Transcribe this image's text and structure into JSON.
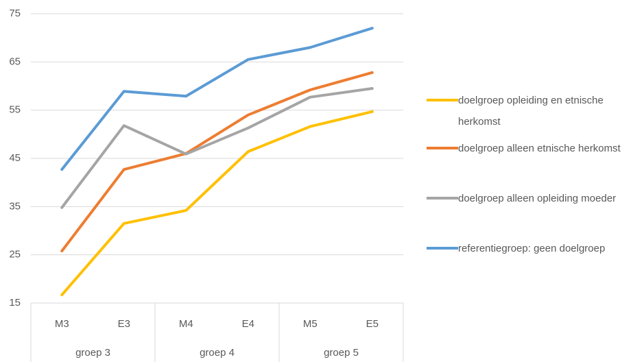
{
  "chart_data": {
    "type": "line",
    "categories": [
      "M3",
      "E3",
      "M4",
      "E4",
      "M5",
      "E5"
    ],
    "groups": [
      "groep 3",
      "groep 4",
      "groep 5"
    ],
    "series": [
      {
        "name": "doelgroep opleiding en etnische herkomst",
        "color": "#ffc000",
        "values": [
          16.7,
          31.5,
          34.2,
          46.4,
          51.6,
          54.7
        ]
      },
      {
        "name": "doelgroep alleen etnische herkomst",
        "color": "#ed7d31",
        "values": [
          25.8,
          42.7,
          46,
          54,
          59.2,
          62.8
        ]
      },
      {
        "name": "doelgroep alleen opleiding moeder",
        "color": "#a5a5a5",
        "values": [
          34.8,
          51.8,
          45.9,
          51.3,
          57.7,
          59.5
        ]
      },
      {
        "name": "referentiegroep: geen doelgroep",
        "color": "#5b9bd5",
        "values": [
          42.7,
          58.9,
          57.9,
          65.5,
          68,
          72
        ]
      }
    ],
    "ylim": [
      15,
      75
    ],
    "yticks": [
      15,
      25,
      35,
      45,
      55,
      65,
      75
    ],
    "grid": true,
    "legend": "right"
  }
}
